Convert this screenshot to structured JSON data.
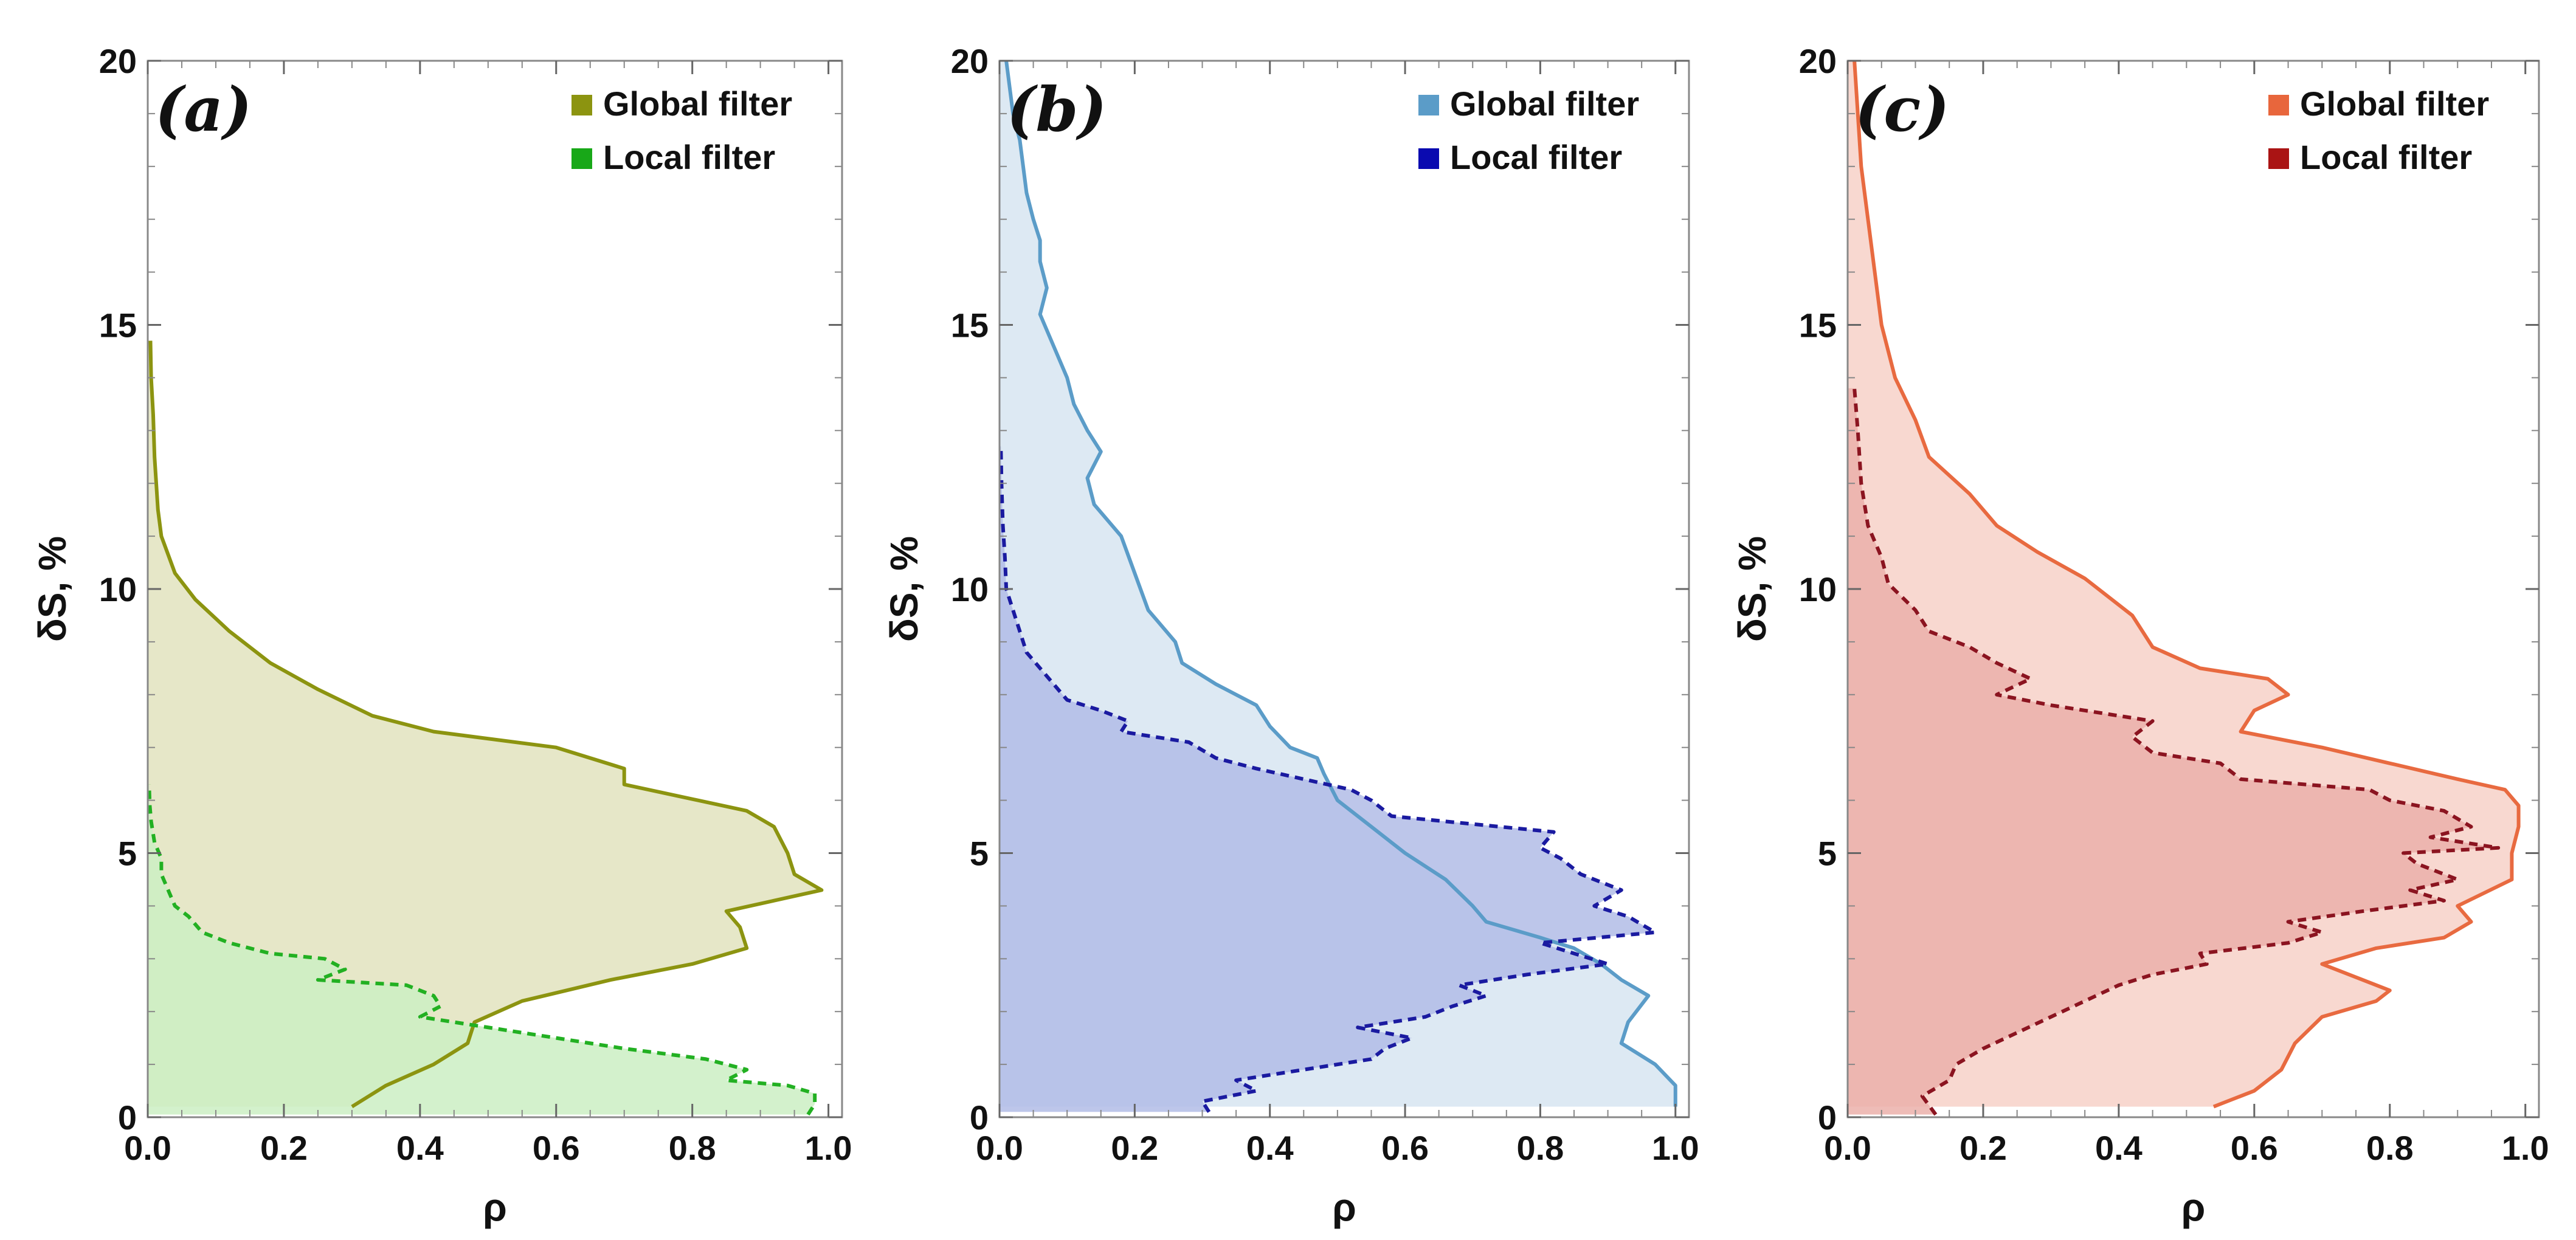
{
  "chart_data": [
    {
      "type": "area",
      "panel_label": "(a)",
      "xlabel": "ρ",
      "ylabel": "δS, %",
      "xlim": [
        0,
        1.02
      ],
      "ylim": [
        0,
        20
      ],
      "xticks": [
        0.0,
        0.2,
        0.4,
        0.6,
        0.8,
        1.0
      ],
      "xtick_labels": [
        "0.0",
        "0.2",
        "0.4",
        "0.6",
        "0.8",
        "1.0"
      ],
      "yticks": [
        0,
        5,
        10,
        15,
        20
      ],
      "ytick_labels": [
        "0",
        "5",
        "10",
        "15",
        "20"
      ],
      "legend_position": "top-right",
      "series": [
        {
          "name": "Global filter",
          "line_color": "#8c9410",
          "fill_color": "#e6e7c8",
          "legend_color": "#8c9410",
          "style": "solid",
          "points": [
            [
              0.3,
              0.2
            ],
            [
              0.35,
              0.6
            ],
            [
              0.42,
              1.0
            ],
            [
              0.47,
              1.4
            ],
            [
              0.48,
              1.8
            ],
            [
              0.55,
              2.2
            ],
            [
              0.68,
              2.6
            ],
            [
              0.8,
              2.9
            ],
            [
              0.88,
              3.2
            ],
            [
              0.87,
              3.6
            ],
            [
              0.85,
              3.9
            ],
            [
              0.92,
              4.1
            ],
            [
              0.99,
              4.3
            ],
            [
              0.95,
              4.6
            ],
            [
              0.94,
              5.0
            ],
            [
              0.92,
              5.5
            ],
            [
              0.88,
              5.8
            ],
            [
              0.7,
              6.3
            ],
            [
              0.7,
              6.6
            ],
            [
              0.6,
              7.0
            ],
            [
              0.42,
              7.3
            ],
            [
              0.33,
              7.6
            ],
            [
              0.25,
              8.1
            ],
            [
              0.18,
              8.6
            ],
            [
              0.12,
              9.2
            ],
            [
              0.07,
              9.8
            ],
            [
              0.04,
              10.3
            ],
            [
              0.02,
              11.0
            ],
            [
              0.015,
              11.5
            ],
            [
              0.01,
              12.5
            ],
            [
              0.008,
              13.3
            ],
            [
              0.005,
              14.0
            ],
            [
              0.004,
              14.7
            ]
          ]
        },
        {
          "name": "Local filter",
          "line_color": "#22b022",
          "fill_color": "#cbeec3",
          "legend_color": "#18a818",
          "style": "dashed",
          "points": [
            [
              0.97,
              0.05
            ],
            [
              0.98,
              0.25
            ],
            [
              0.98,
              0.45
            ],
            [
              0.94,
              0.6
            ],
            [
              0.85,
              0.7
            ],
            [
              0.88,
              0.9
            ],
            [
              0.82,
              1.1
            ],
            [
              0.7,
              1.3
            ],
            [
              0.6,
              1.5
            ],
            [
              0.5,
              1.7
            ],
            [
              0.4,
              1.9
            ],
            [
              0.43,
              2.1
            ],
            [
              0.42,
              2.3
            ],
            [
              0.38,
              2.5
            ],
            [
              0.25,
              2.6
            ],
            [
              0.29,
              2.8
            ],
            [
              0.26,
              3.0
            ],
            [
              0.18,
              3.1
            ],
            [
              0.12,
              3.3
            ],
            [
              0.08,
              3.5
            ],
            [
              0.06,
              3.8
            ],
            [
              0.04,
              4.0
            ],
            [
              0.03,
              4.3
            ],
            [
              0.02,
              4.6
            ],
            [
              0.02,
              4.9
            ],
            [
              0.01,
              5.2
            ],
            [
              0.005,
              5.6
            ],
            [
              0.003,
              5.9
            ],
            [
              0.002,
              6.3
            ]
          ]
        }
      ]
    },
    {
      "type": "area",
      "panel_label": "(b)",
      "xlabel": "ρ",
      "ylabel": "δS, %",
      "xlim": [
        0,
        1.02
      ],
      "ylim": [
        0,
        20
      ],
      "xticks": [
        0.0,
        0.2,
        0.4,
        0.6,
        0.8,
        1.0
      ],
      "xtick_labels": [
        "0.0",
        "0.2",
        "0.4",
        "0.6",
        "0.8",
        "1.0"
      ],
      "yticks": [
        0,
        5,
        10,
        15,
        20
      ],
      "ytick_labels": [
        "0",
        "5",
        "10",
        "15",
        "20"
      ],
      "legend_position": "top-right",
      "series": [
        {
          "name": "Global filter",
          "line_color": "#5b9cc8",
          "fill_color": "#dde9f3",
          "legend_color": "#5b9cc8",
          "style": "solid",
          "points": [
            [
              1.0,
              0.2
            ],
            [
              1.0,
              0.6
            ],
            [
              0.97,
              1.0
            ],
            [
              0.92,
              1.4
            ],
            [
              0.93,
              1.8
            ],
            [
              0.96,
              2.3
            ],
            [
              0.92,
              2.6
            ],
            [
              0.89,
              2.9
            ],
            [
              0.85,
              3.2
            ],
            [
              0.8,
              3.4
            ],
            [
              0.72,
              3.7
            ],
            [
              0.7,
              4.0
            ],
            [
              0.66,
              4.5
            ],
            [
              0.6,
              5.0
            ],
            [
              0.55,
              5.5
            ],
            [
              0.5,
              6.0
            ],
            [
              0.48,
              6.5
            ],
            [
              0.47,
              6.8
            ],
            [
              0.43,
              7.0
            ],
            [
              0.4,
              7.4
            ],
            [
              0.38,
              7.8
            ],
            [
              0.32,
              8.2
            ],
            [
              0.27,
              8.6
            ],
            [
              0.26,
              9.0
            ],
            [
              0.22,
              9.6
            ],
            [
              0.2,
              10.3
            ],
            [
              0.18,
              11.0
            ],
            [
              0.14,
              11.6
            ],
            [
              0.13,
              12.1
            ],
            [
              0.15,
              12.6
            ],
            [
              0.13,
              13.0
            ],
            [
              0.11,
              13.5
            ],
            [
              0.1,
              14.0
            ],
            [
              0.08,
              14.6
            ],
            [
              0.06,
              15.2
            ],
            [
              0.07,
              15.7
            ],
            [
              0.06,
              16.2
            ],
            [
              0.06,
              16.6
            ],
            [
              0.05,
              17.0
            ],
            [
              0.04,
              17.5
            ],
            [
              0.035,
              18.0
            ],
            [
              0.03,
              18.5
            ],
            [
              0.02,
              19.0
            ],
            [
              0.015,
              19.5
            ],
            [
              0.01,
              20.0
            ]
          ]
        },
        {
          "name": "Local filter",
          "line_color": "#1a1aa0",
          "fill_color": "#b2bce6",
          "legend_color": "#0a0ab0",
          "style": "dashed",
          "points": [
            [
              0.31,
              0.1
            ],
            [
              0.3,
              0.3
            ],
            [
              0.38,
              0.5
            ],
            [
              0.35,
              0.7
            ],
            [
              0.45,
              0.9
            ],
            [
              0.55,
              1.1
            ],
            [
              0.57,
              1.3
            ],
            [
              0.61,
              1.5
            ],
            [
              0.53,
              1.7
            ],
            [
              0.63,
              1.9
            ],
            [
              0.67,
              2.1
            ],
            [
              0.72,
              2.3
            ],
            [
              0.68,
              2.5
            ],
            [
              0.78,
              2.7
            ],
            [
              0.9,
              2.9
            ],
            [
              0.85,
              3.1
            ],
            [
              0.8,
              3.3
            ],
            [
              0.97,
              3.5
            ],
            [
              0.93,
              3.8
            ],
            [
              0.88,
              4.0
            ],
            [
              0.92,
              4.3
            ],
            [
              0.86,
              4.6
            ],
            [
              0.83,
              4.9
            ],
            [
              0.8,
              5.1
            ],
            [
              0.82,
              5.4
            ],
            [
              0.74,
              5.5
            ],
            [
              0.58,
              5.7
            ],
            [
              0.55,
              6.0
            ],
            [
              0.52,
              6.2
            ],
            [
              0.45,
              6.4
            ],
            [
              0.38,
              6.6
            ],
            [
              0.32,
              6.8
            ],
            [
              0.28,
              7.1
            ],
            [
              0.18,
              7.3
            ],
            [
              0.19,
              7.5
            ],
            [
              0.15,
              7.7
            ],
            [
              0.1,
              7.9
            ],
            [
              0.08,
              8.2
            ],
            [
              0.06,
              8.5
            ],
            [
              0.04,
              8.8
            ],
            [
              0.03,
              9.2
            ],
            [
              0.02,
              9.6
            ],
            [
              0.01,
              10.0
            ],
            [
              0.008,
              10.6
            ],
            [
              0.005,
              11.2
            ],
            [
              0.003,
              12.0
            ],
            [
              0.002,
              12.7
            ]
          ]
        }
      ]
    },
    {
      "type": "area",
      "panel_label": "(c)",
      "xlabel": "ρ",
      "ylabel": "δS, %",
      "xlim": [
        0,
        1.02
      ],
      "ylim": [
        0,
        20
      ],
      "xticks": [
        0.0,
        0.2,
        0.4,
        0.6,
        0.8,
        1.0
      ],
      "xtick_labels": [
        "0.0",
        "0.2",
        "0.4",
        "0.6",
        "0.8",
        "1.0"
      ],
      "yticks": [
        0,
        5,
        10,
        15,
        20
      ],
      "ytick_labels": [
        "0",
        "5",
        "10",
        "15",
        "20"
      ],
      "legend_position": "top-right",
      "series": [
        {
          "name": "Global filter",
          "line_color": "#e86a40",
          "fill_color": "#f8d8d0",
          "legend_color": "#e8663c",
          "style": "solid",
          "points": [
            [
              0.54,
              0.2
            ],
            [
              0.6,
              0.5
            ],
            [
              0.64,
              0.9
            ],
            [
              0.66,
              1.4
            ],
            [
              0.7,
              1.9
            ],
            [
              0.78,
              2.2
            ],
            [
              0.8,
              2.4
            ],
            [
              0.76,
              2.6
            ],
            [
              0.7,
              2.9
            ],
            [
              0.78,
              3.2
            ],
            [
              0.88,
              3.4
            ],
            [
              0.92,
              3.7
            ],
            [
              0.9,
              4.0
            ],
            [
              0.98,
              4.5
            ],
            [
              0.98,
              5.0
            ],
            [
              0.99,
              5.5
            ],
            [
              0.99,
              5.9
            ],
            [
              0.97,
              6.2
            ],
            [
              0.9,
              6.4
            ],
            [
              0.8,
              6.7
            ],
            [
              0.7,
              7.0
            ],
            [
              0.58,
              7.3
            ],
            [
              0.6,
              7.7
            ],
            [
              0.65,
              8.0
            ],
            [
              0.62,
              8.3
            ],
            [
              0.52,
              8.5
            ],
            [
              0.45,
              8.9
            ],
            [
              0.42,
              9.5
            ],
            [
              0.35,
              10.2
            ],
            [
              0.28,
              10.7
            ],
            [
              0.22,
              11.2
            ],
            [
              0.18,
              11.8
            ],
            [
              0.12,
              12.5
            ],
            [
              0.1,
              13.2
            ],
            [
              0.07,
              14.0
            ],
            [
              0.05,
              15.0
            ],
            [
              0.04,
              16.0
            ],
            [
              0.03,
              17.0
            ],
            [
              0.02,
              18.0
            ],
            [
              0.015,
              19.0
            ],
            [
              0.01,
              20.0
            ]
          ]
        },
        {
          "name": "Local filter",
          "line_color": "#8b1420",
          "fill_color": "#ebb0aa",
          "legend_color": "#aa1414",
          "style": "dashed",
          "points": [
            [
              0.13,
              0.05
            ],
            [
              0.11,
              0.4
            ],
            [
              0.15,
              0.7
            ],
            [
              0.16,
              1.0
            ],
            [
              0.2,
              1.3
            ],
            [
              0.25,
              1.6
            ],
            [
              0.3,
              1.9
            ],
            [
              0.35,
              2.2
            ],
            [
              0.4,
              2.5
            ],
            [
              0.45,
              2.7
            ],
            [
              0.53,
              2.9
            ],
            [
              0.52,
              3.1
            ],
            [
              0.65,
              3.3
            ],
            [
              0.7,
              3.5
            ],
            [
              0.65,
              3.7
            ],
            [
              0.76,
              3.9
            ],
            [
              0.88,
              4.1
            ],
            [
              0.83,
              4.3
            ],
            [
              0.9,
              4.5
            ],
            [
              0.84,
              4.8
            ],
            [
              0.82,
              5.0
            ],
            [
              0.96,
              5.1
            ],
            [
              0.86,
              5.3
            ],
            [
              0.92,
              5.5
            ],
            [
              0.88,
              5.8
            ],
            [
              0.8,
              6.0
            ],
            [
              0.77,
              6.2
            ],
            [
              0.58,
              6.4
            ],
            [
              0.55,
              6.7
            ],
            [
              0.45,
              6.9
            ],
            [
              0.42,
              7.2
            ],
            [
              0.45,
              7.5
            ],
            [
              0.3,
              7.8
            ],
            [
              0.22,
              8.0
            ],
            [
              0.27,
              8.3
            ],
            [
              0.22,
              8.6
            ],
            [
              0.18,
              8.9
            ],
            [
              0.12,
              9.2
            ],
            [
              0.1,
              9.6
            ],
            [
              0.06,
              10.1
            ],
            [
              0.05,
              10.6
            ],
            [
              0.03,
              11.2
            ],
            [
              0.02,
              12.0
            ],
            [
              0.015,
              13.0
            ],
            [
              0.01,
              13.8
            ]
          ]
        }
      ]
    }
  ]
}
